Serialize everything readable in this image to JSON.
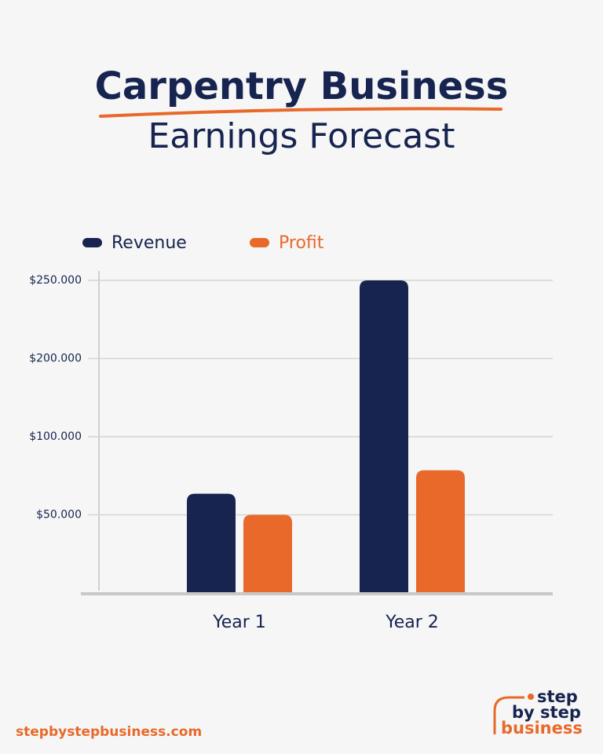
{
  "chart_data": {
    "type": "bar",
    "title": "Carpentry Business",
    "subtitle": "Earnings Forecast",
    "categories": [
      "Year 1",
      "Year 2"
    ],
    "series": [
      {
        "name": "Revenue",
        "color": "#16244f",
        "values": [
          63500,
          250000
        ]
      },
      {
        "name": "Profit",
        "color": "#e8692a",
        "values": [
          50000,
          78500
        ]
      }
    ],
    "ylim": [
      0,
      250000
    ],
    "yticks": [
      {
        "value": 50000,
        "label": "$50.000"
      },
      {
        "value": 100000,
        "label": "$100.000"
      },
      {
        "value": 200000,
        "label": "$200.000"
      },
      {
        "value": 250000,
        "label": "$250.000"
      }
    ],
    "grid": true,
    "legend": "top"
  },
  "footer": {
    "website": "stepbystepbusiness.com",
    "logo": [
      "step",
      "by step",
      "business"
    ]
  }
}
